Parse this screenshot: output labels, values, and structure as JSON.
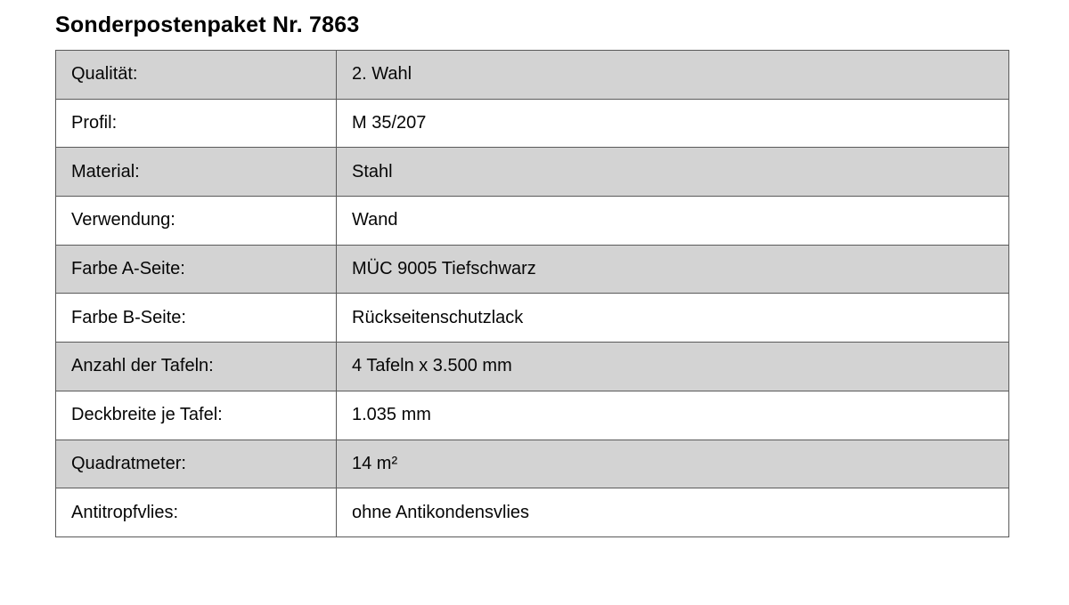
{
  "page": {
    "title": "Sonderpostenpaket Nr. 7863"
  },
  "table": {
    "rows": [
      {
        "label": "Qualität:",
        "value": "2. Wahl"
      },
      {
        "label": "Profil:",
        "value": "M 35/207"
      },
      {
        "label": "Material:",
        "value": "Stahl"
      },
      {
        "label": "Verwendung:",
        "value": "Wand"
      },
      {
        "label": "Farbe A-Seite:",
        "value": "MÜC 9005 Tiefschwarz"
      },
      {
        "label": "Farbe B-Seite:",
        "value": "Rückseitenschutzlack"
      },
      {
        "label": "Anzahl der Tafeln:",
        "value": "4 Tafeln x 3.500 mm"
      },
      {
        "label": "Deckbreite je Tafel:",
        "value": "1.035 mm"
      },
      {
        "label": "Quadratmeter:",
        "value": "14 m²"
      },
      {
        "label": "Antitropfvlies:",
        "value": "ohne Antikondensvlies"
      }
    ],
    "colors": {
      "row_shaded": "#d3d3d3",
      "row_plain": "#ffffff",
      "border": "#5a5a5a",
      "text": "#060606"
    }
  }
}
